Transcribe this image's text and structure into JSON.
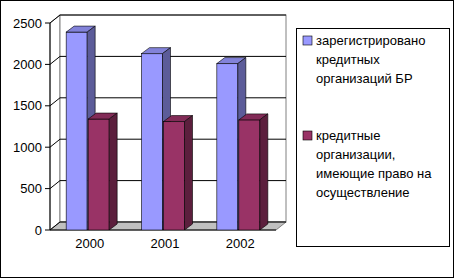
{
  "chart_data": {
    "type": "bar",
    "categories": [
      "2000",
      "2001",
      "2002"
    ],
    "series": [
      {
        "name": "зарегистрировано кредитных организаций БР",
        "color": "#9999ff",
        "values": [
          2390,
          2130,
          2010
        ]
      },
      {
        "name": "кредитные организации, имеющие право на осуществление",
        "color": "#993366",
        "values": [
          1340,
          1310,
          1330
        ]
      }
    ],
    "ylim": [
      0,
      2500
    ],
    "yticks": [
      0,
      500,
      1000,
      1500,
      2000,
      2500
    ],
    "grid": true,
    "legend": "right"
  }
}
